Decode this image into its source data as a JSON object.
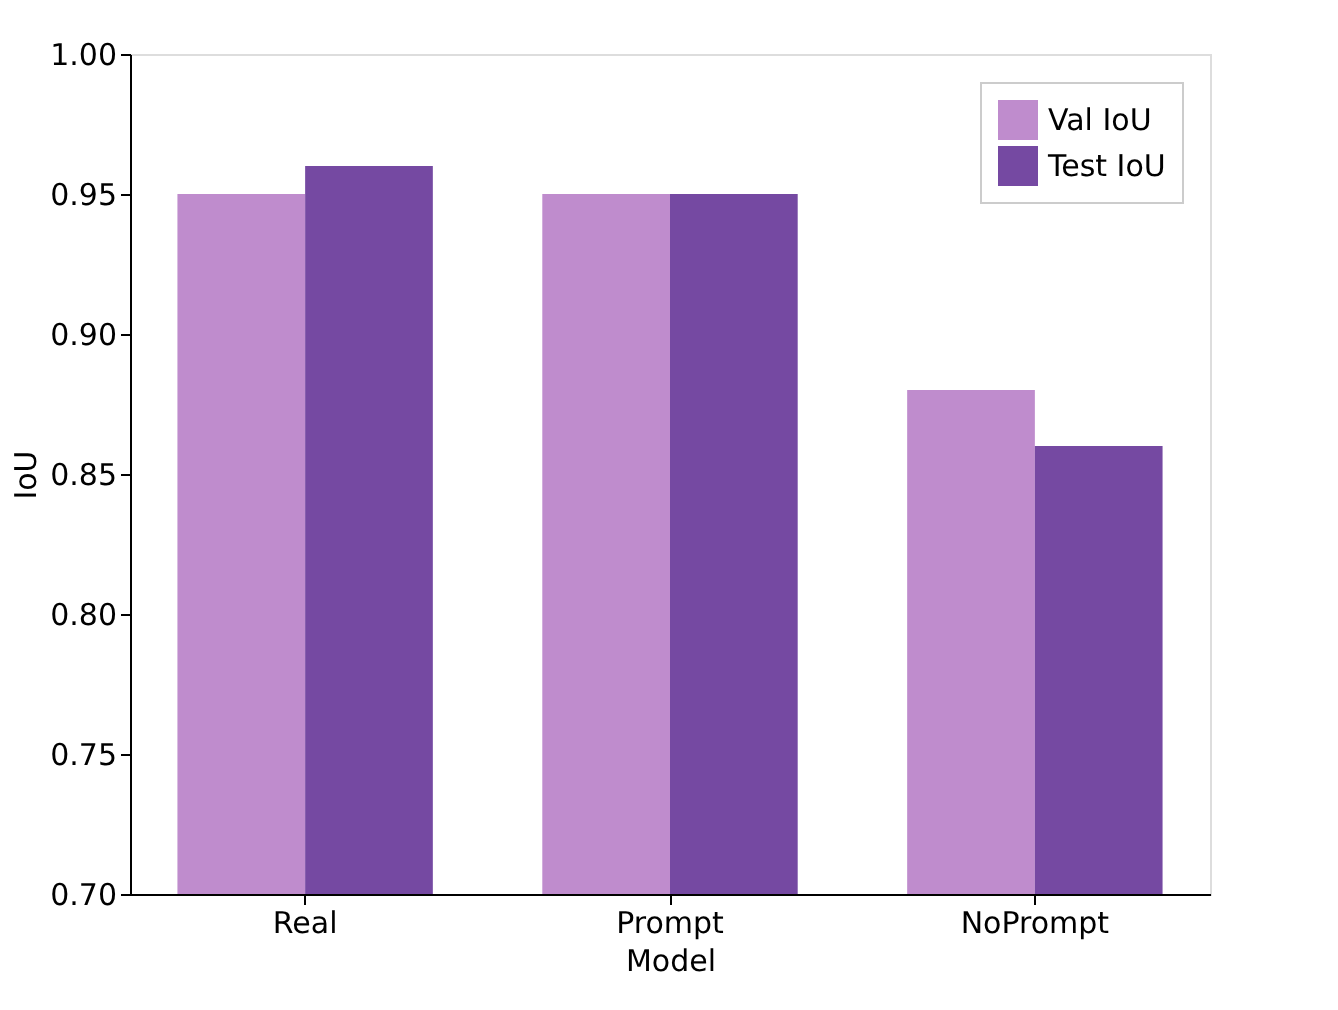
{
  "chart_data": {
    "type": "bar",
    "xlabel": "Model",
    "ylabel": "IoU",
    "categories": [
      "Real",
      "Prompt",
      "NoPrompt"
    ],
    "series": [
      {
        "name": "Val IoU",
        "color": "#bf8ccd",
        "values": [
          0.95,
          0.95,
          0.88
        ]
      },
      {
        "name": "Test IoU",
        "color": "#7549a2",
        "values": [
          0.96,
          0.95,
          0.86
        ]
      }
    ],
    "ylim": [
      0.7,
      1.0
    ],
    "yticks": [
      {
        "value": 0.7,
        "label": "0.70"
      },
      0.75,
      {
        "value": 0.8,
        "label": "0.80"
      },
      0.85,
      {
        "value": 0.9,
        "label": "0.90"
      },
      0.95,
      {
        "value": 1.0,
        "label": "1.00"
      }
    ],
    "grid": false,
    "legend": "top right"
  }
}
